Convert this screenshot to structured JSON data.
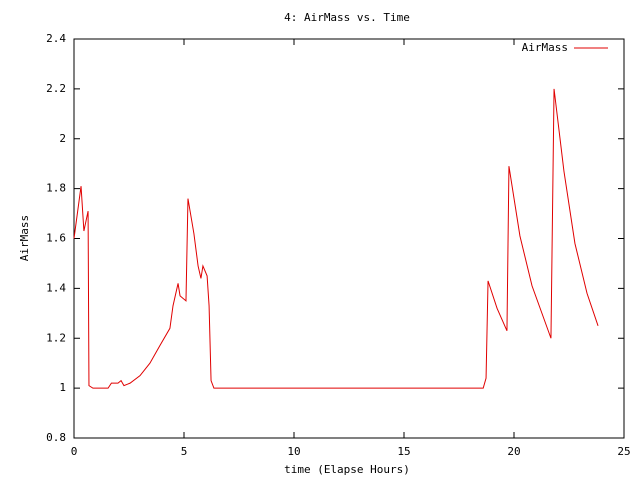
{
  "chart_data": {
    "type": "line",
    "title": "4: AirMass vs. Time",
    "xlabel": "time (Elapse Hours)",
    "ylabel": "AirMass",
    "x": [
      0,
      0.32,
      0.45,
      0.64,
      0.68,
      0.86,
      1.55,
      1.7,
      2.0,
      2.14,
      2.27,
      2.55,
      3.0,
      3.45,
      3.9,
      4.36,
      4.5,
      4.73,
      4.82,
      5.09,
      5.18,
      5.45,
      5.64,
      5.77,
      5.86,
      6.05,
      6.14,
      6.23,
      6.36,
      18.6,
      18.73,
      18.82,
      19.23,
      19.68,
      19.77,
      20.27,
      20.82,
      21.68,
      21.82,
      22.27,
      22.77,
      23.32,
      23.82
    ],
    "series": [
      {
        "name": "AirMass",
        "color": "#e00000",
        "values": [
          1.6,
          1.81,
          1.63,
          1.71,
          1.01,
          1.0,
          1.0,
          1.02,
          1.02,
          1.03,
          1.01,
          1.02,
          1.05,
          1.1,
          1.17,
          1.24,
          1.33,
          1.42,
          1.37,
          1.35,
          1.76,
          1.62,
          1.49,
          1.44,
          1.49,
          1.45,
          1.33,
          1.03,
          1.0,
          1.0,
          1.04,
          1.43,
          1.32,
          1.23,
          1.89,
          1.61,
          1.41,
          1.2,
          2.2,
          1.87,
          1.58,
          1.38,
          1.25
        ]
      }
    ],
    "xlim": [
      0,
      25
    ],
    "xticks": [
      0,
      5,
      10,
      15,
      20,
      25
    ],
    "ylim": [
      0.8,
      2.4
    ],
    "yticks": [
      0.8,
      1,
      1.2,
      1.4,
      1.6,
      1.8,
      2,
      2.2,
      2.4
    ],
    "legend": "top-right"
  }
}
